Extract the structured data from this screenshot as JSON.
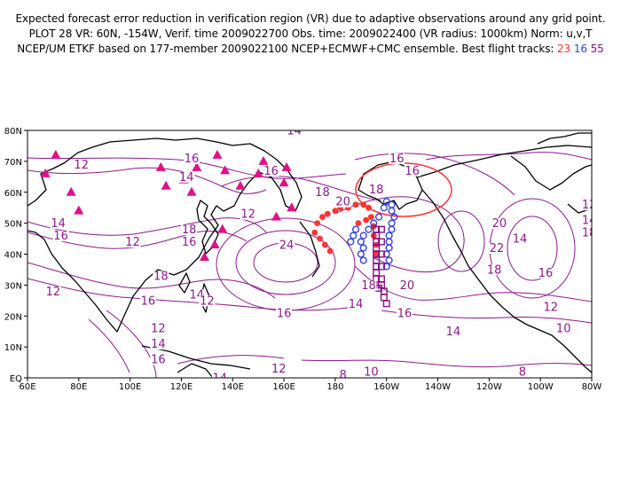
{
  "header": {
    "line1": "Expected forecast error reduction in verification region (VR) due to adaptive observations around any grid point.",
    "line2": "PLOT 28 VR: 60N, -154W, Verif. time 2009022700 Obs. time: 2009022400 (VR radius: 1000km) Norm: u,v,T",
    "line3_prefix": "NCEP/UM ETKF based on 177-member 2009022100 NCEP+ECMWF+CMC ensemble. Best flight tracks: ",
    "track_red": "23",
    "track_blue": "16",
    "track_purple": "55"
  },
  "axes": {
    "lon_labels": [
      "60E",
      "80E",
      "100E",
      "120E",
      "140E",
      "160E",
      "180",
      "160W",
      "140W",
      "120W",
      "100W",
      "80W"
    ],
    "lat_labels": [
      "EQ",
      "10N",
      "20N",
      "30N",
      "40N",
      "50N",
      "60N",
      "70N",
      "80N"
    ]
  },
  "contour_labels": [
    {
      "text": "12",
      "lon": 81,
      "lat": 68
    },
    {
      "text": "16",
      "lon": 124,
      "lat": 70
    },
    {
      "text": "14",
      "lon": 122,
      "lat": 64
    },
    {
      "text": "16",
      "lon": 155,
      "lat": 66
    },
    {
      "text": "14",
      "lon": 164,
      "lat": 79
    },
    {
      "text": "16",
      "lon": 204,
      "lat": 70
    },
    {
      "text": "18",
      "lon": 175,
      "lat": 59
    },
    {
      "text": "20",
      "lon": 183,
      "lat": 56
    },
    {
      "text": "18",
      "lon": 196,
      "lat": 60
    },
    {
      "text": "12",
      "lon": 146,
      "lat": 52
    },
    {
      "text": "14",
      "lon": 72,
      "lat": 49
    },
    {
      "text": "16",
      "lon": 73,
      "lat": 45
    },
    {
      "text": "12",
      "lon": 101,
      "lat": 43
    },
    {
      "text": "18",
      "lon": 123,
      "lat": 47
    },
    {
      "text": "16",
      "lon": 123,
      "lat": 43
    },
    {
      "text": "24",
      "lon": 161,
      "lat": 42
    },
    {
      "text": "18",
      "lon": 112,
      "lat": 32
    },
    {
      "text": "16",
      "lon": 107,
      "lat": 24
    },
    {
      "text": "14",
      "lon": 126,
      "lat": 26
    },
    {
      "text": "12",
      "lon": 130,
      "lat": 24
    },
    {
      "text": "12",
      "lon": 70,
      "lat": 27
    },
    {
      "text": "16",
      "lon": 160,
      "lat": 20
    },
    {
      "text": "12",
      "lon": 111,
      "lat": 15
    },
    {
      "text": "14",
      "lon": 111,
      "lat": 10
    },
    {
      "text": "16",
      "lon": 111,
      "lat": 5
    },
    {
      "text": "14",
      "lon": 135,
      "lat": -1
    },
    {
      "text": "12",
      "lon": 158,
      "lat": 2
    },
    {
      "text": "8",
      "lon": 183,
      "lat": 0
    },
    {
      "text": "10",
      "lon": 194,
      "lat": 1
    },
    {
      "text": "8",
      "lon": 253,
      "lat": 1
    },
    {
      "text": "18",
      "lon": 193,
      "lat": 29
    },
    {
      "text": "14",
      "lon": 188,
      "lat": 23
    },
    {
      "text": "20",
      "lon": 208,
      "lat": 29
    },
    {
      "text": "16",
      "lon": 207,
      "lat": 20
    },
    {
      "text": "14",
      "lon": 226,
      "lat": 14
    },
    {
      "text": "12",
      "lon": 264,
      "lat": 22
    },
    {
      "text": "10",
      "lon": 269,
      "lat": 15
    },
    {
      "text": "20",
      "lon": 244,
      "lat": 49
    },
    {
      "text": "22",
      "lon": 243,
      "lat": 41
    },
    {
      "text": "18",
      "lon": 242,
      "lat": 34
    },
    {
      "text": "16",
      "lon": 262,
      "lat": 33
    },
    {
      "text": "14",
      "lon": 252,
      "lat": 44
    },
    {
      "text": "12",
      "lon": 279,
      "lat": 55
    },
    {
      "text": "14",
      "lon": 279,
      "lat": 50
    },
    {
      "text": "18",
      "lon": 279,
      "lat": 46
    },
    {
      "text": "20",
      "lon": 283,
      "lat": 35
    },
    {
      "text": "16",
      "lon": 210,
      "lat": 66
    }
  ],
  "colors": {
    "contour": "#8b1a8b",
    "track_red": "#ff3333",
    "track_blue": "#3344dd",
    "track_purple": "#881188",
    "station_triangle": "#e0108a",
    "vr_circle": "#ff3333"
  },
  "verification_region": {
    "lat": 60,
    "lon": -154,
    "radius_km": 1000
  },
  "stations": [
    [
      67,
      66
    ],
    [
      71,
      72
    ],
    [
      77,
      60
    ],
    [
      80,
      54
    ],
    [
      112,
      68
    ],
    [
      114,
      62
    ],
    [
      121,
      64
    ],
    [
      124,
      60
    ],
    [
      126,
      68
    ],
    [
      134,
      72
    ],
    [
      137,
      67
    ],
    [
      143,
      62
    ],
    [
      152,
      70
    ],
    [
      150,
      66
    ],
    [
      161,
      68
    ],
    [
      160,
      63
    ],
    [
      157,
      52
    ],
    [
      163,
      55
    ],
    [
      133,
      43
    ],
    [
      136,
      48
    ],
    [
      129,
      39
    ]
  ],
  "track_red_points": [
    [
      173,
      50
    ],
    [
      175,
      52
    ],
    [
      177,
      53
    ],
    [
      180,
      54
    ],
    [
      182,
      55
    ],
    [
      185,
      55
    ],
    [
      188,
      56
    ],
    [
      191,
      56
    ],
    [
      193,
      55
    ],
    [
      194,
      52
    ],
    [
      195,
      49
    ],
    [
      195,
      46
    ],
    [
      196,
      43
    ],
    [
      196,
      40
    ],
    [
      172,
      47
    ],
    [
      174,
      45
    ],
    [
      176,
      43
    ],
    [
      178,
      41
    ],
    [
      189,
      50
    ],
    [
      192,
      51
    ]
  ],
  "track_blue_points": [
    [
      191,
      38
    ],
    [
      190,
      40
    ],
    [
      191,
      42
    ],
    [
      190,
      44
    ],
    [
      191,
      46
    ],
    [
      193,
      48
    ],
    [
      195,
      50
    ],
    [
      197,
      52
    ],
    [
      199,
      55
    ],
    [
      200,
      57
    ],
    [
      202,
      56
    ],
    [
      202,
      54
    ],
    [
      203,
      52
    ],
    [
      202,
      50
    ],
    [
      202,
      48
    ],
    [
      201,
      46
    ],
    [
      201,
      44
    ],
    [
      201,
      42
    ],
    [
      200,
      40
    ],
    [
      201,
      38
    ],
    [
      200,
      36
    ],
    [
      186,
      44
    ],
    [
      187,
      46
    ],
    [
      188,
      48
    ]
  ],
  "track_purple_points": [
    [
      196,
      48
    ],
    [
      196,
      46
    ],
    [
      196,
      44
    ],
    [
      196,
      42
    ],
    [
      196,
      40
    ],
    [
      196,
      38
    ],
    [
      196,
      36
    ],
    [
      196,
      34
    ],
    [
      196,
      32
    ],
    [
      198,
      48
    ],
    [
      198,
      44
    ],
    [
      198,
      40
    ],
    [
      198,
      36
    ],
    [
      198,
      32
    ],
    [
      198,
      30
    ],
    [
      199,
      28
    ],
    [
      199,
      26
    ],
    [
      200,
      24
    ],
    [
      197,
      29
    ],
    [
      195,
      30
    ]
  ]
}
